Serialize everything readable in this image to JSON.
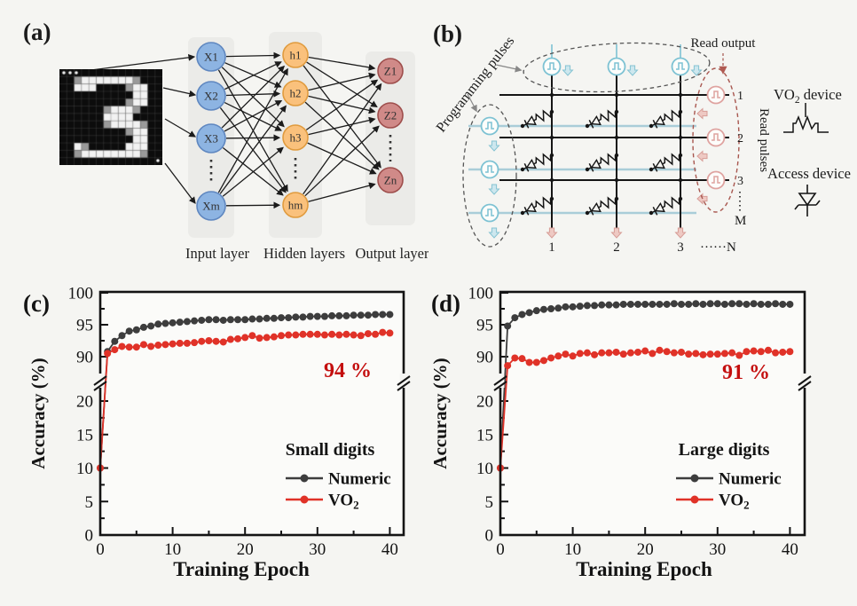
{
  "figure": {
    "background": "#f5f5f2"
  },
  "panel_a": {
    "tag": "(a)",
    "captions": [
      "Input layer",
      "Hidden layers",
      "Output layer"
    ],
    "input_nodes": [
      "X1",
      "X2",
      "X3",
      "Xm"
    ],
    "hidden_nodes": [
      "h1",
      "h2",
      "h3",
      "hm"
    ],
    "output_nodes": [
      "Z1",
      "Z2",
      "Zn"
    ],
    "node_colors": {
      "input": "#8db4e2",
      "input_border": "#5f87c0",
      "hidden": "#fac17c",
      "hidden_border": "#e09b3e",
      "output": "#d08a88",
      "output_border": "#9e4e4c"
    },
    "digit_matrix": [
      "..............",
      "..+#######+...",
      "..###....+##..",
      "..........##..",
      ".........+##..",
      "......+###+...",
      "......####....",
      "......+####+..",
      ".........+##..",
      "..........##..",
      "..#+.....###..",
      "..+########+..",
      ".............."
    ]
  },
  "panel_b": {
    "tag": "(b)",
    "programming_pulses": "Programming pulses",
    "read_output": "Read output",
    "read_pulses": "Read pulses",
    "row_labels": [
      "1",
      "2",
      "3"
    ],
    "row_last": "M",
    "col_labels": [
      "1",
      "2",
      "3"
    ],
    "col_last": "······N",
    "vo2_prefix": "VO",
    "vo2_sub": "2",
    "vo2_suffix": " device",
    "access_device": "Access device",
    "colors": {
      "pulse_blue": "#7dc2d3",
      "line_blue": "#a9cdd8",
      "pulse_pink": "#dfa3a0",
      "dark_red": "#a8574f"
    }
  },
  "chart_data": [
    {
      "panel": "(c)",
      "type": "line",
      "xlabel": "Training Epoch",
      "ylabel": "Accuracy (%)",
      "x_start": 0,
      "x_end": 40,
      "x_ticks": [
        0,
        10,
        20,
        30,
        40
      ],
      "y_axis_break": true,
      "y_ticks_lower": [
        0,
        5,
        10,
        15,
        20
      ],
      "y_ticks_upper": [
        90,
        95,
        100
      ],
      "legend_title": "Small digits",
      "annotation": "94 %",
      "annotation_color": "#c40f0f",
      "series": [
        {
          "name": "Numeric",
          "name_main": "Numeric",
          "name_sub": "",
          "color": "#3d3d3d",
          "values": [
            10,
            90.8,
            92.4,
            93.3,
            94.0,
            94.2,
            94.6,
            94.8,
            95.1,
            95.2,
            95.3,
            95.4,
            95.5,
            95.6,
            95.7,
            95.8,
            95.8,
            95.7,
            95.8,
            95.8,
            95.8,
            95.9,
            95.9,
            96.0,
            96.0,
            96.1,
            96.1,
            96.2,
            96.2,
            96.3,
            96.3,
            96.3,
            96.4,
            96.4,
            96.4,
            96.5,
            96.5,
            96.5,
            96.6,
            96.6,
            96.6
          ]
        },
        {
          "name": "VO2",
          "name_main": "VO",
          "name_sub": "2",
          "color": "#e03228",
          "values": [
            10,
            90.5,
            91.1,
            91.6,
            91.5,
            91.5,
            91.9,
            91.6,
            91.8,
            91.9,
            92.0,
            92.1,
            92.1,
            92.2,
            92.4,
            92.5,
            92.4,
            92.3,
            92.7,
            92.8,
            93.0,
            93.3,
            92.9,
            93.0,
            93.1,
            93.3,
            93.4,
            93.4,
            93.5,
            93.5,
            93.5,
            93.4,
            93.5,
            93.4,
            93.5,
            93.4,
            93.3,
            93.6,
            93.5,
            93.8,
            93.7
          ]
        }
      ]
    },
    {
      "panel": "(d)",
      "type": "line",
      "xlabel": "Training Epoch",
      "ylabel": "Accuracy (%)",
      "x_start": 0,
      "x_end": 40,
      "x_ticks": [
        0,
        10,
        20,
        30,
        40
      ],
      "y_axis_break": true,
      "y_ticks_lower": [
        0,
        5,
        10,
        15,
        20
      ],
      "y_ticks_upper": [
        90,
        95,
        100
      ],
      "legend_title": "Large digits",
      "annotation": "91 %",
      "annotation_color": "#c40f0f",
      "series": [
        {
          "name": "Numeric",
          "name_main": "Numeric",
          "name_sub": "",
          "color": "#3d3d3d",
          "values": [
            10,
            94.8,
            96.1,
            96.6,
            96.9,
            97.2,
            97.4,
            97.5,
            97.6,
            97.8,
            97.8,
            97.9,
            98.0,
            98.0,
            98.1,
            98.1,
            98.1,
            98.2,
            98.2,
            98.2,
            98.2,
            98.2,
            98.2,
            98.2,
            98.3,
            98.2,
            98.2,
            98.3,
            98.2,
            98.3,
            98.3,
            98.2,
            98.3,
            98.3,
            98.2,
            98.3,
            98.2,
            98.2,
            98.3,
            98.2,
            98.2
          ]
        },
        {
          "name": "VO2",
          "name_main": "VO",
          "name_sub": "2",
          "color": "#e03228",
          "values": [
            10,
            88.6,
            89.8,
            89.7,
            89.1,
            89.1,
            89.4,
            89.8,
            90.1,
            90.4,
            90.1,
            90.5,
            90.6,
            90.3,
            90.6,
            90.6,
            90.7,
            90.4,
            90.6,
            90.7,
            90.9,
            90.5,
            91.0,
            90.8,
            90.6,
            90.7,
            90.4,
            90.5,
            90.3,
            90.4,
            90.4,
            90.5,
            90.6,
            90.2,
            90.8,
            90.9,
            90.8,
            91.0,
            90.6,
            90.7,
            90.8
          ]
        }
      ]
    }
  ]
}
